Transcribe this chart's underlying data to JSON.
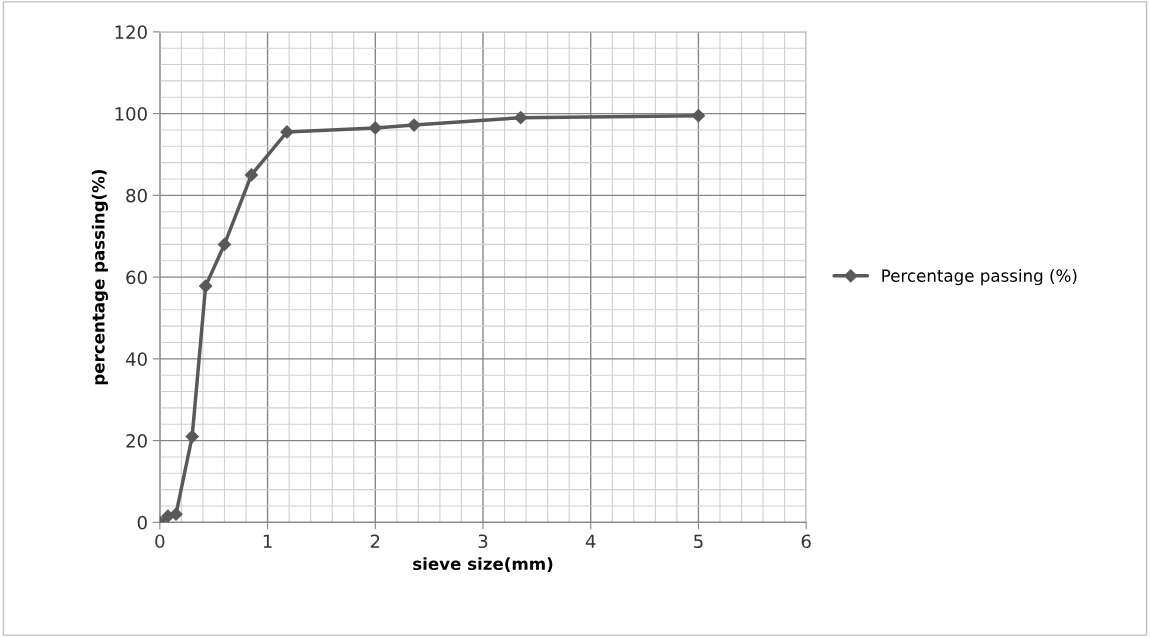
{
  "chart_data": {
    "type": "line",
    "xlabel": "sieve size(mm)",
    "ylabel": "percentage passing(%)",
    "x": [
      0,
      0.075,
      0.15,
      0.3,
      0.425,
      0.6,
      0.85,
      1.18,
      2,
      2.36,
      3.35,
      5
    ],
    "series": [
      {
        "name": "Percentage passing (%)",
        "color": "#595959",
        "values": [
          0,
          1.5,
          2,
          21,
          57.8,
          68,
          85,
          95.5,
          96.5,
          97.2,
          99,
          99.5
        ]
      }
    ],
    "xlim": [
      0,
      6
    ],
    "xticks": [
      0,
      1,
      2,
      3,
      4,
      5,
      6
    ],
    "ylim": [
      0,
      120
    ],
    "yticks": [
      0,
      20,
      40,
      60,
      80,
      100,
      120
    ],
    "grid": true,
    "legend": "right",
    "marker": "diamond",
    "line_style": "solid"
  }
}
